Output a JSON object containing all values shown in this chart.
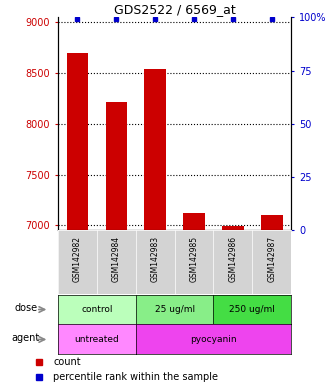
{
  "title": "GDS2522 / 6569_at",
  "samples": [
    "GSM142982",
    "GSM142984",
    "GSM142983",
    "GSM142985",
    "GSM142986",
    "GSM142987"
  ],
  "counts": [
    8700,
    8220,
    8540,
    7120,
    6995,
    7100
  ],
  "percentile_ranks": [
    99,
    99,
    99,
    99,
    99,
    99
  ],
  "ylim_left": [
    6950,
    9050
  ],
  "ylim_right": [
    0,
    100
  ],
  "yticks_left": [
    7000,
    7500,
    8000,
    8500,
    9000
  ],
  "yticks_right": [
    0,
    25,
    50,
    75,
    100
  ],
  "ytick_labels_right": [
    "0",
    "25",
    "50",
    "75",
    "100%"
  ],
  "bar_color": "#cc0000",
  "dot_color": "#0000cc",
  "dose_groups": [
    {
      "label": "control",
      "cols": [
        0,
        1
      ],
      "color": "#bbffbb"
    },
    {
      "label": "25 ug/ml",
      "cols": [
        2,
        3
      ],
      "color": "#88ee88"
    },
    {
      "label": "250 ug/ml",
      "cols": [
        4,
        5
      ],
      "color": "#44dd44"
    }
  ],
  "agent_groups": [
    {
      "label": "untreated",
      "cols": [
        0,
        1
      ],
      "color": "#ff88ff"
    },
    {
      "label": "pyocyanin",
      "cols": [
        2,
        3,
        4,
        5
      ],
      "color": "#ee44ee"
    }
  ],
  "dose_label": "dose",
  "agent_label": "agent",
  "legend_count_color": "#cc0000",
  "legend_pct_color": "#0000cc",
  "legend_count_label": "count",
  "legend_pct_label": "percentile rank within the sample",
  "tick_label_color_left": "#cc0000",
  "tick_label_color_right": "#0000cc",
  "title_color": "#000000",
  "bar_width": 0.55,
  "cell_bg_color": "#d3d3d3",
  "fig_width": 3.31,
  "fig_height": 3.84,
  "dpi": 100
}
